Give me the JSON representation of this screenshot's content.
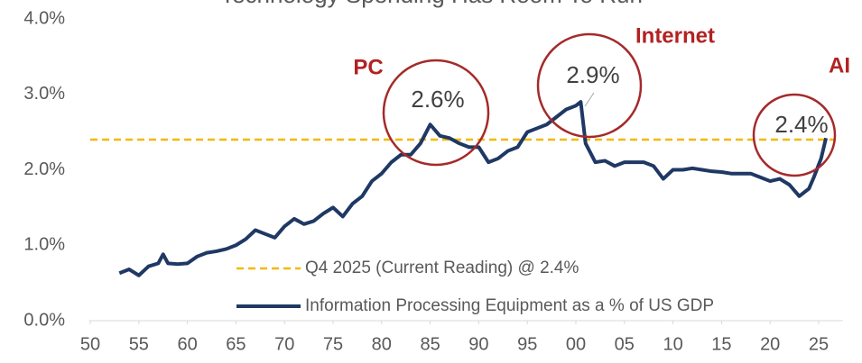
{
  "chart_data": {
    "type": "line",
    "title": "Technology Spending Has Room To Run",
    "x": [
      1953,
      1954,
      1955,
      1956,
      1957,
      1957.5,
      1958,
      1959,
      1960,
      1961,
      1962,
      1963,
      1964,
      1965,
      1966,
      1967,
      1968,
      1969,
      1970,
      1971,
      1972,
      1973,
      1974,
      1975,
      1976,
      1977,
      1978,
      1979,
      1980,
      1981,
      1982,
      1983,
      1984,
      1985,
      1986,
      1987,
      1988,
      1989,
      1990,
      1991,
      1992,
      1993,
      1994,
      1995,
      1996,
      1997,
      1998,
      1999,
      2000,
      2000.5,
      2001,
      2002,
      2003,
      2004,
      2005,
      2006,
      2007,
      2008,
      2009,
      2010,
      2011,
      2012,
      2013,
      2014,
      2015,
      2016,
      2017,
      2018,
      2019,
      2020,
      2021,
      2022,
      2023,
      2024,
      2024.5,
      2025.25,
      2025.75
    ],
    "series": [
      {
        "name": "Information Processing Equipment as a % of US GDP",
        "color": "#1f3864",
        "values": [
          0.63,
          0.68,
          0.6,
          0.72,
          0.76,
          0.88,
          0.76,
          0.75,
          0.76,
          0.85,
          0.9,
          0.92,
          0.95,
          1.0,
          1.08,
          1.2,
          1.15,
          1.1,
          1.25,
          1.35,
          1.28,
          1.32,
          1.42,
          1.5,
          1.38,
          1.55,
          1.65,
          1.85,
          1.95,
          2.1,
          2.2,
          2.2,
          2.35,
          2.6,
          2.45,
          2.42,
          2.35,
          2.3,
          2.3,
          2.1,
          2.15,
          2.25,
          2.3,
          2.5,
          2.55,
          2.6,
          2.7,
          2.8,
          2.85,
          2.9,
          2.35,
          2.1,
          2.12,
          2.05,
          2.1,
          2.1,
          2.1,
          2.05,
          1.88,
          2.0,
          2.0,
          2.02,
          2.0,
          1.98,
          1.97,
          1.95,
          1.95,
          1.95,
          1.9,
          1.85,
          1.88,
          1.8,
          1.65,
          1.75,
          1.9,
          2.15,
          2.42
        ]
      }
    ],
    "reference_line": {
      "name": "Q4 2025 (Current Reading) @ 2.4%",
      "value": 2.4,
      "color": "#f5b800"
    },
    "annotations": [
      "PC",
      "Internet",
      "AI",
      "2.6%",
      "2.9%",
      "2.4%"
    ],
    "xlim": [
      1948,
      2027.5
    ],
    "xticks": [
      {
        "value": 1950,
        "label": "50"
      },
      {
        "value": 1955,
        "label": "55"
      },
      {
        "value": 1960,
        "label": "60"
      },
      {
        "value": 1965,
        "label": "65"
      },
      {
        "value": 1970,
        "label": "70"
      },
      {
        "value": 1975,
        "label": "75"
      },
      {
        "value": 1980,
        "label": "80"
      },
      {
        "value": 1985,
        "label": "85"
      },
      {
        "value": 1990,
        "label": "90"
      },
      {
        "value": 1995,
        "label": "95"
      },
      {
        "value": 2000,
        "label": "00"
      },
      {
        "value": 2005,
        "label": "05"
      },
      {
        "value": 2010,
        "label": "10"
      },
      {
        "value": 2015,
        "label": "15"
      },
      {
        "value": 2020,
        "label": "20"
      },
      {
        "value": 2025,
        "label": "25"
      }
    ],
    "ylim": [
      0,
      4
    ],
    "yticks": [
      {
        "value": 0,
        "label": "0.0%"
      },
      {
        "value": 1,
        "label": "1.0%"
      },
      {
        "value": 2,
        "label": "2.0%"
      },
      {
        "value": 3,
        "label": "3.0%"
      },
      {
        "value": 4,
        "label": "4.0%"
      }
    ],
    "grid": false,
    "legend": "bottom"
  }
}
